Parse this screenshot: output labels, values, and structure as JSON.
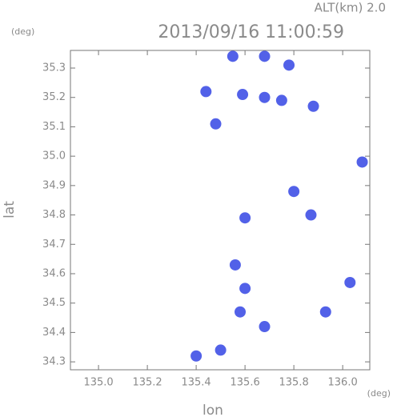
{
  "chart_data": {
    "type": "scatter",
    "title": "2013/09/16 11:00:59",
    "annotations": [
      "ALT(km)  2.0",
      "(deg)",
      "(deg)"
    ],
    "x_label": "lon",
    "y_label": "lat",
    "x": [
      135.55,
      135.68,
      135.78,
      135.59,
      135.68,
      135.75,
      135.44,
      135.88,
      135.48,
      136.08,
      135.8,
      135.6,
      135.87,
      135.56,
      135.6,
      135.58,
      135.68,
      136.03,
      135.93,
      135.5,
      135.4
    ],
    "values": [
      35.34,
      35.34,
      35.31,
      35.21,
      35.2,
      35.19,
      35.22,
      35.17,
      35.11,
      34.98,
      34.88,
      34.79,
      34.8,
      34.63,
      34.55,
      34.47,
      34.42,
      34.57,
      34.47,
      34.34,
      34.32
    ],
    "color": "#3f50e6",
    "xlim": [
      134.885,
      136.111
    ],
    "ylim": [
      34.273,
      35.36
    ],
    "xticks": [
      {
        "value": 135.0,
        "label": "135.0"
      },
      135.2,
      135.4,
      135.6,
      135.8,
      {
        "value": 136.0,
        "label": "136.0"
      }
    ],
    "yticks": [
      34.3,
      34.4,
      34.5,
      34.6,
      34.7,
      34.8,
      34.9,
      {
        "value": 35.0,
        "label": "35.0"
      },
      35.1,
      35.2,
      35.3
    ]
  }
}
